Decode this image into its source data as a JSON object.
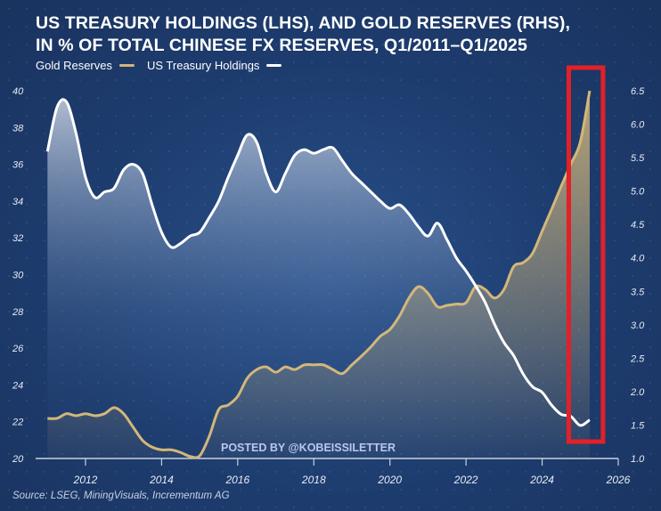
{
  "title_line1": "US TREASURY HOLDINGS (LHS), AND GOLD RESERVES (RHS),",
  "title_line2": "IN % OF TOTAL CHINESE FX RESERVES, Q1/2011–Q1/2025",
  "source": "Source: LSEG, MiningVisuals, Incrementum AG",
  "watermark": "POSTED BY @KOBEISSILETTER",
  "colors": {
    "gold": "#d3b77a",
    "treasury": "#ffffff",
    "highlight": "#e32027"
  },
  "chart_data": {
    "type": "line",
    "title": "US Treasury Holdings (LHS), and Gold Reserves (RHS), in % of total Chinese FX reserves, Q1/2011–Q1/2025",
    "legend": [
      "Gold Reserves",
      "US Treasury Holdings"
    ],
    "legend_position": "top-left",
    "xlim": [
      2010.8,
      2026
    ],
    "x_ticks": [
      "2012",
      "2014",
      "2016",
      "2018",
      "2020",
      "2022",
      "2024",
      "2026"
    ],
    "ylim_left": [
      20,
      40
    ],
    "y_ticks_left": [
      "20",
      "22",
      "24",
      "26",
      "28",
      "30",
      "32",
      "34",
      "36",
      "38",
      "40"
    ],
    "ylim_right": [
      1.0,
      6.5
    ],
    "y_ticks_right": [
      "1.0",
      "1.5",
      "2.0",
      "2.5",
      "3.0",
      "3.5",
      "4.0",
      "4.5",
      "5.0",
      "5.5",
      "6.0",
      "6.5"
    ],
    "grid": false,
    "highlight_range": [
      2024.7,
      2025.6
    ],
    "x": [
      2011,
      2011.25,
      2011.5,
      2011.75,
      2012,
      2012.25,
      2012.5,
      2012.75,
      2013,
      2013.25,
      2013.5,
      2013.75,
      2014,
      2014.25,
      2014.5,
      2014.75,
      2015,
      2015.25,
      2015.5,
      2015.75,
      2016,
      2016.25,
      2016.5,
      2016.75,
      2017,
      2017.25,
      2017.5,
      2017.75,
      2018,
      2018.25,
      2018.5,
      2018.75,
      2019,
      2019.25,
      2019.5,
      2019.75,
      2020,
      2020.25,
      2020.5,
      2020.75,
      2021,
      2021.25,
      2021.5,
      2021.75,
      2022,
      2022.25,
      2022.5,
      2022.75,
      2023,
      2023.25,
      2023.5,
      2023.75,
      2024,
      2024.25,
      2024.5,
      2024.75,
      2025,
      2025.25
    ],
    "series": [
      {
        "name": "US Treasury Holdings",
        "axis": "left",
        "values": [
          36.7,
          39.1,
          39.4,
          37.7,
          35.3,
          34.2,
          34.5,
          34.7,
          35.7,
          36.0,
          35.5,
          33.8,
          32.3,
          31.5,
          31.7,
          32.1,
          32.3,
          33.1,
          34.0,
          35.3,
          36.5,
          37.6,
          37.2,
          35.5,
          34.5,
          35.5,
          36.5,
          36.8,
          36.6,
          36.8,
          36.9,
          36.2,
          35.5,
          35.0,
          34.5,
          34.0,
          33.6,
          33.8,
          33.3,
          32.6,
          32.1,
          32.8,
          31.9,
          30.9,
          30.2,
          29.4,
          28.5,
          27.3,
          26.3,
          25.6,
          24.6,
          23.9,
          23.6,
          22.9,
          22.4,
          22.3,
          21.8,
          22.1
        ]
      },
      {
        "name": "Gold Reserves",
        "axis": "right",
        "values": [
          1.6,
          1.6,
          1.67,
          1.64,
          1.67,
          1.64,
          1.67,
          1.76,
          1.67,
          1.47,
          1.27,
          1.17,
          1.13,
          1.13,
          1.09,
          1.03,
          1.04,
          1.33,
          1.73,
          1.8,
          1.93,
          2.2,
          2.33,
          2.37,
          2.29,
          2.37,
          2.33,
          2.4,
          2.4,
          2.4,
          2.33,
          2.27,
          2.4,
          2.53,
          2.67,
          2.83,
          2.93,
          3.13,
          3.4,
          3.57,
          3.47,
          3.27,
          3.29,
          3.31,
          3.33,
          3.57,
          3.53,
          3.4,
          3.53,
          3.87,
          3.93,
          4.07,
          4.4,
          4.73,
          5.07,
          5.4,
          5.73,
          6.5
        ]
      }
    ]
  }
}
